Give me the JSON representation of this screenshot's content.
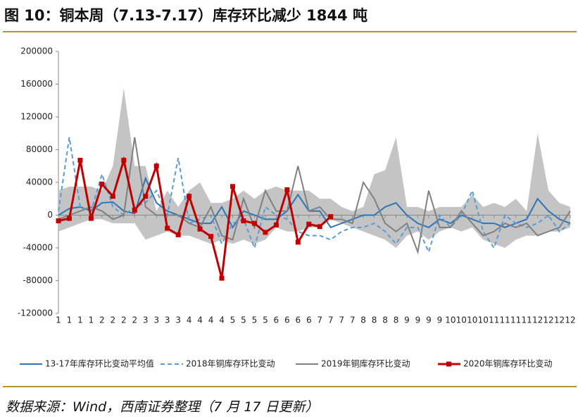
{
  "header": {
    "title": "图 10：铜本周（7.13-7.17）库存环比减少 1844 吨"
  },
  "chart_data": {
    "type": "line",
    "categories": [
      "1",
      "1",
      "1",
      "1",
      "2",
      "2",
      "2",
      "2",
      "3",
      "3",
      "3",
      "3",
      "4",
      "4",
      "4",
      "4",
      "5",
      "5",
      "5",
      "5",
      "6",
      "6",
      "6",
      "6",
      "7",
      "7",
      "7",
      "7",
      "8",
      "8",
      "8",
      "8",
      "9",
      "9",
      "9",
      "9",
      "10",
      "10",
      "10",
      "10",
      "11",
      "11",
      "11",
      "11",
      "12",
      "12",
      "12",
      "12"
    ],
    "ylim": [
      -120000,
      200000
    ],
    "yticks": [
      -120000,
      -80000,
      -40000,
      0,
      40000,
      80000,
      120000,
      160000,
      200000
    ],
    "range_band": {
      "color": "#c4c4c4",
      "upper": [
        30000,
        35000,
        35000,
        35000,
        30000,
        60000,
        155000,
        60000,
        60000,
        5000,
        30000,
        10000,
        30000,
        40000,
        15000,
        15000,
        20000,
        30000,
        20000,
        30000,
        35000,
        30000,
        30000,
        30000,
        20000,
        20000,
        10000,
        5000,
        10000,
        50000,
        55000,
        95000,
        10000,
        10000,
        5000,
        10000,
        10000,
        10000,
        25000,
        10000,
        15000,
        10000,
        20000,
        5000,
        100000,
        30000,
        15000,
        10000
      ],
      "lower": [
        -20000,
        -15000,
        -10000,
        -5000,
        -5000,
        -10000,
        -10000,
        -10000,
        -30000,
        -25000,
        -20000,
        -25000,
        -25000,
        -30000,
        -35000,
        -30000,
        -35000,
        -30000,
        -35000,
        -30000,
        -15000,
        -20000,
        -20000,
        -15000,
        -15000,
        -5000,
        -10000,
        -15000,
        -20000,
        -25000,
        -30000,
        -40000,
        -25000,
        -20000,
        -30000,
        -20000,
        -15000,
        -20000,
        -15000,
        -30000,
        -35000,
        -40000,
        -30000,
        -25000,
        -25000,
        -20000,
        -20000,
        -15000
      ]
    },
    "series": [
      {
        "name": "13-17年库存环比变动平均值",
        "color": "#2e75b6",
        "dashed": false,
        "markers": false,
        "values": [
          0,
          8000,
          10000,
          5000,
          15000,
          16000,
          5000,
          2000,
          45000,
          15000,
          5000,
          0,
          -5000,
          -10000,
          -10000,
          10000,
          -15000,
          5000,
          0,
          -5000,
          -5000,
          5000,
          25000,
          5000,
          5000,
          -15000,
          -10000,
          -5000,
          0,
          0,
          10000,
          15000,
          0,
          -10000,
          -15000,
          -5000,
          -10000,
          0,
          -5000,
          -10000,
          -10000,
          -15000,
          -10000,
          -5000,
          20000,
          5000,
          -5000,
          -10000
        ]
      },
      {
        "name": "2018年铜库存环比变动",
        "color": "#5b9bd5",
        "dashed": true,
        "markers": false,
        "values": [
          5000,
          95000,
          10000,
          5000,
          50000,
          10000,
          0,
          10000,
          15000,
          30000,
          0,
          70000,
          -10000,
          -5000,
          0,
          -35000,
          -10000,
          -5000,
          -40000,
          10000,
          0,
          -5000,
          -20000,
          -25000,
          -25000,
          -30000,
          -20000,
          -15000,
          -15000,
          -10000,
          -20000,
          -35000,
          -15000,
          -15000,
          -45000,
          0,
          -15000,
          0,
          30000,
          -20000,
          -40000,
          0,
          -10000,
          -15000,
          -10000,
          0,
          -20000,
          -10000
        ]
      },
      {
        "name": "2019年铜库存环比变动",
        "color": "#808080",
        "dashed": false,
        "markers": false,
        "values": [
          -5000,
          0,
          5000,
          10000,
          5000,
          -5000,
          0,
          95000,
          10000,
          0,
          0,
          0,
          -10000,
          -15000,
          10000,
          -25000,
          -30000,
          20000,
          -15000,
          30000,
          5000,
          5000,
          60000,
          5000,
          10000,
          -5000,
          -5000,
          -10000,
          40000,
          20000,
          -10000,
          -20000,
          -10000,
          -45000,
          30000,
          -15000,
          -15000,
          5000,
          -10000,
          -25000,
          -20000,
          -10000,
          -15000,
          -10000,
          -25000,
          -20000,
          -15000,
          5000
        ]
      },
      {
        "name": "2020年铜库存环比变动",
        "color": "#c00000",
        "dashed": false,
        "markers": true,
        "values": [
          -7000,
          -4000,
          67000,
          -4000,
          38000,
          23000,
          67000,
          6000,
          23000,
          60000,
          -16000,
          -24000,
          23000,
          -17000,
          -26000,
          -77000,
          35000,
          -7000,
          -10000,
          -21000,
          -12000,
          31000,
          -33000,
          -11000,
          -14000,
          -1844,
          null,
          null,
          null,
          null,
          null,
          null,
          null,
          null,
          null,
          null,
          null,
          null,
          null,
          null,
          null,
          null,
          null,
          null,
          null,
          null,
          null,
          null
        ]
      }
    ]
  },
  "footer": {
    "source": "数据来源：Wind，西南证券整理（7 月 17 日更新）"
  }
}
